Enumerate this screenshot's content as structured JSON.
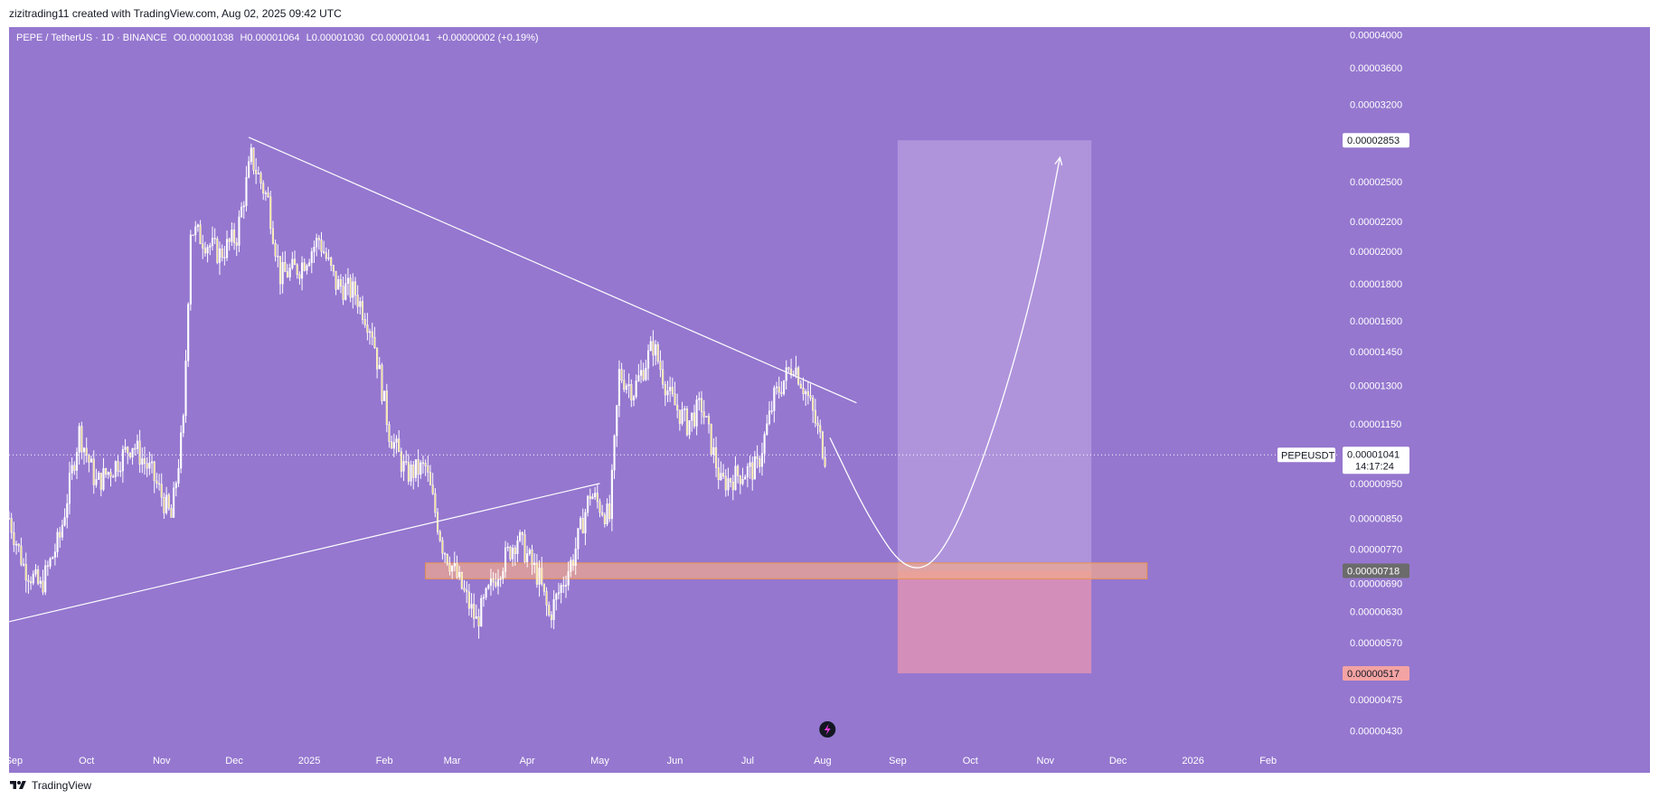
{
  "header": {
    "credit": "zizitrading11 created with TradingView.com, Aug 02, 2025 09:42 UTC"
  },
  "legend": {
    "symbol": "PEPE / TetherUS · 1D · BINANCE",
    "open": "O0.00001038",
    "high": "H0.00001064",
    "low": "L0.00001030",
    "close": "C0.00001041",
    "change": "+0.00000002 (+0.19%)"
  },
  "footer": {
    "brand": "TradingView"
  },
  "colors": {
    "plot_bg": "#9577cf",
    "candle": "#ffffff",
    "candle_fill_up": "#ffffff",
    "candle_fill_down": "#f5e08a",
    "trendline": "#ffffff",
    "support_zone": "#f2a98c",
    "target_box": "#b89ee0",
    "stop_box": "#e494b4",
    "price_line": "#ffffff"
  },
  "chart_data": {
    "type": "candlestick",
    "title": "PEPE / TetherUS · 1D · BINANCE",
    "symbol_label": "PEPEUSDT",
    "last_price": "0.00001041",
    "countdown": "14:17:24",
    "y_scale": "log",
    "ylim": [
      4.1e-06,
      4.1e-05
    ],
    "y_ticks": [
      "0.00004000",
      "0.00003600",
      "0.00003200",
      "0.00002500",
      "0.00002200",
      "0.00002000",
      "0.00001800",
      "0.00001600",
      "0.00001450",
      "0.00001300",
      "0.00001150",
      "0.00000950",
      "0.00000850",
      "0.00000770",
      "0.00000690",
      "0.00000630",
      "0.00000570",
      "0.00000475",
      "0.00000430"
    ],
    "y_tick_values": [
      4e-05,
      3.6e-05,
      3.2e-05,
      2.5e-05,
      2.2e-05,
      2e-05,
      1.8e-05,
      1.6e-05,
      1.45e-05,
      1.3e-05,
      1.15e-05,
      9.5e-06,
      8.5e-06,
      7.7e-06,
      6.9e-06,
      6.3e-06,
      5.7e-06,
      4.75e-06,
      4.3e-06
    ],
    "highlight_prices": [
      {
        "label": "0.00002853",
        "value": 2.853e-05,
        "style": "target"
      },
      {
        "label": "0.00000718",
        "value": 7.18e-06,
        "style": "support"
      },
      {
        "label": "0.00000517",
        "value": 5.17e-06,
        "style": "stop"
      }
    ],
    "x_start": "2024-08-30",
    "x_end": "2026-02-28",
    "x_ticks": [
      {
        "label": "Sep",
        "date": "2024-09-01"
      },
      {
        "label": "Oct",
        "date": "2024-10-01"
      },
      {
        "label": "Nov",
        "date": "2024-11-01"
      },
      {
        "label": "Dec",
        "date": "2024-12-01"
      },
      {
        "label": "2025",
        "date": "2025-01-01"
      },
      {
        "label": "Feb",
        "date": "2025-02-01"
      },
      {
        "label": "Mar",
        "date": "2025-03-01"
      },
      {
        "label": "Apr",
        "date": "2025-04-01"
      },
      {
        "label": "May",
        "date": "2025-05-01"
      },
      {
        "label": "Jun",
        "date": "2025-06-01"
      },
      {
        "label": "Jul",
        "date": "2025-07-01"
      },
      {
        "label": "Aug",
        "date": "2025-08-01"
      },
      {
        "label": "Sep",
        "date": "2025-09-01"
      },
      {
        "label": "Oct",
        "date": "2025-10-01"
      },
      {
        "label": "Nov",
        "date": "2025-11-01"
      },
      {
        "label": "Dec",
        "date": "2025-12-01"
      },
      {
        "label": "2026",
        "date": "2026-01-01"
      },
      {
        "label": "Feb",
        "date": "2026-02-01"
      }
    ],
    "series_anchors": [
      {
        "date": "2024-08-30",
        "close": 8.5e-06
      },
      {
        "date": "2024-09-05",
        "close": 7.3e-06
      },
      {
        "date": "2024-09-12",
        "close": 6.8e-06
      },
      {
        "date": "2024-09-20",
        "close": 8e-06
      },
      {
        "date": "2024-09-28",
        "close": 1.12e-05
      },
      {
        "date": "2024-10-05",
        "close": 9.5e-06
      },
      {
        "date": "2024-10-12",
        "close": 1e-05
      },
      {
        "date": "2024-10-20",
        "close": 1.08e-05
      },
      {
        "date": "2024-10-28",
        "close": 9.8e-06
      },
      {
        "date": "2024-11-05",
        "close": 8.5e-06
      },
      {
        "date": "2024-11-10",
        "close": 1.15e-05
      },
      {
        "date": "2024-11-13",
        "close": 2.15e-05
      },
      {
        "date": "2024-11-18",
        "close": 2.08e-05
      },
      {
        "date": "2024-11-25",
        "close": 1.98e-05
      },
      {
        "date": "2024-12-02",
        "close": 2.1e-05
      },
      {
        "date": "2024-12-08",
        "close": 2.7e-05
      },
      {
        "date": "2024-12-15",
        "close": 2.35e-05
      },
      {
        "date": "2024-12-20",
        "close": 1.85e-05
      },
      {
        "date": "2024-12-28",
        "close": 1.9e-05
      },
      {
        "date": "2025-01-05",
        "close": 2.08e-05
      },
      {
        "date": "2025-01-12",
        "close": 1.8e-05
      },
      {
        "date": "2025-01-20",
        "close": 1.75e-05
      },
      {
        "date": "2025-01-27",
        "close": 1.55e-05
      },
      {
        "date": "2025-02-03",
        "close": 1.12e-05
      },
      {
        "date": "2025-02-10",
        "close": 9.8e-06
      },
      {
        "date": "2025-02-18",
        "close": 1e-05
      },
      {
        "date": "2025-02-25",
        "close": 7.8e-06
      },
      {
        "date": "2025-03-05",
        "close": 6.8e-06
      },
      {
        "date": "2025-03-11",
        "close": 6.1e-06
      },
      {
        "date": "2025-03-20",
        "close": 7.2e-06
      },
      {
        "date": "2025-03-28",
        "close": 8e-06
      },
      {
        "date": "2025-04-06",
        "close": 7e-06
      },
      {
        "date": "2025-04-10",
        "close": 6.2e-06
      },
      {
        "date": "2025-04-20",
        "close": 7.5e-06
      },
      {
        "date": "2025-04-27",
        "close": 9.2e-06
      },
      {
        "date": "2025-05-05",
        "close": 8.5e-06
      },
      {
        "date": "2025-05-09",
        "close": 1.35e-05
      },
      {
        "date": "2025-05-15",
        "close": 1.28e-05
      },
      {
        "date": "2025-05-23",
        "close": 1.48e-05
      },
      {
        "date": "2025-05-30",
        "close": 1.25e-05
      },
      {
        "date": "2025-06-06",
        "close": 1.15e-05
      },
      {
        "date": "2025-06-12",
        "close": 1.22e-05
      },
      {
        "date": "2025-06-20",
        "close": 9.5e-06
      },
      {
        "date": "2025-06-28",
        "close": 9.8e-06
      },
      {
        "date": "2025-07-05",
        "close": 1e-05
      },
      {
        "date": "2025-07-12",
        "close": 1.25e-05
      },
      {
        "date": "2025-07-20",
        "close": 1.4e-05
      },
      {
        "date": "2025-07-26",
        "close": 1.25e-05
      },
      {
        "date": "2025-08-02",
        "close": 1.041e-05
      }
    ],
    "annotations": [
      {
        "type": "trendline",
        "name": "descending-resistance",
        "from": {
          "date": "2024-12-07",
          "price": 2.88e-05
        },
        "to": {
          "date": "2025-08-15",
          "price": 1.23e-05
        }
      },
      {
        "type": "trendline",
        "name": "ascending-support",
        "from": {
          "date": "2024-08-30",
          "price": 6.1e-06
        },
        "to": {
          "date": "2025-05-01",
          "price": 9.5e-06
        }
      },
      {
        "type": "zone",
        "name": "support-zone",
        "from_date": "2025-02-18",
        "to_date": "2025-12-13",
        "price_top": 7.3e-06,
        "price_bottom": 7.1e-06
      },
      {
        "type": "box",
        "name": "target-box",
        "from_date": "2025-09-01",
        "to_date": "2025-11-20",
        "price_top": 2.853e-05,
        "price_bottom": 7.18e-06
      },
      {
        "type": "box",
        "name": "stop-box",
        "from_date": "2025-09-01",
        "to_date": "2025-11-20",
        "price_top": 7.18e-06,
        "price_bottom": 5.17e-06
      },
      {
        "type": "projection-path",
        "name": "projected-path",
        "points": [
          {
            "date": "2025-08-04",
            "price": 1.1e-05
          },
          {
            "date": "2025-08-20",
            "price": 8.5e-06
          },
          {
            "date": "2025-09-05",
            "price": 7.1e-06
          },
          {
            "date": "2025-09-20",
            "price": 7.5e-06
          },
          {
            "date": "2025-10-10",
            "price": 1.1e-05
          },
          {
            "date": "2025-10-28",
            "price": 1.8e-05
          },
          {
            "date": "2025-11-07",
            "price": 2.7e-05
          }
        ]
      }
    ]
  }
}
